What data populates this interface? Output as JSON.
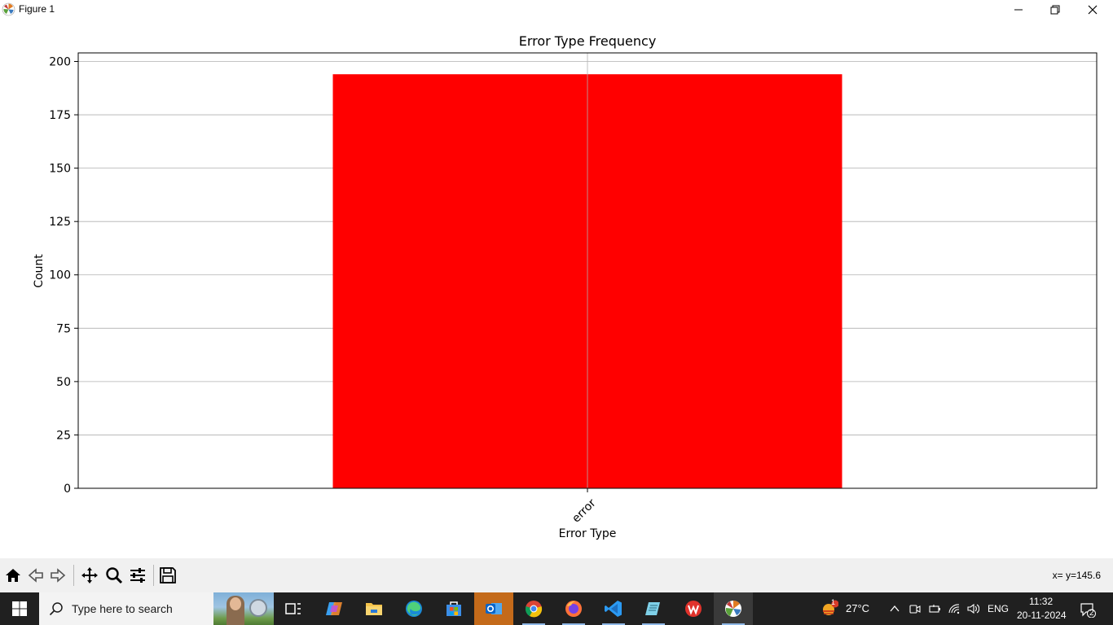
{
  "window": {
    "title": "Figure 1"
  },
  "chart_data": {
    "type": "bar",
    "title": "Error Type Frequency",
    "xlabel": "Error Type",
    "ylabel": "Count",
    "categories": [
      "error"
    ],
    "values": [
      194
    ],
    "ylim": [
      0,
      204
    ],
    "yticks": [
      0,
      25,
      50,
      75,
      100,
      125,
      150,
      175,
      200
    ],
    "ytick_labels": [
      "0",
      "25",
      "50",
      "75",
      "100",
      "125",
      "150",
      "175",
      "200"
    ],
    "grid": true,
    "bar_color": "#ff0000",
    "xtick_rotation": 45
  },
  "toolbar": {
    "coordinates": "x= y=145.6"
  },
  "taskbar": {
    "search_placeholder": "Type here to search",
    "weather_temp": "27°C",
    "weather_badge": "1",
    "language": "ENG",
    "time": "11:32",
    "date": "20-11-2024",
    "notification_count": "2"
  },
  "colors": {
    "taskbar_bg": "#202020",
    "toolbar_bg": "#f0f0f0",
    "accent": "#ff0000"
  }
}
